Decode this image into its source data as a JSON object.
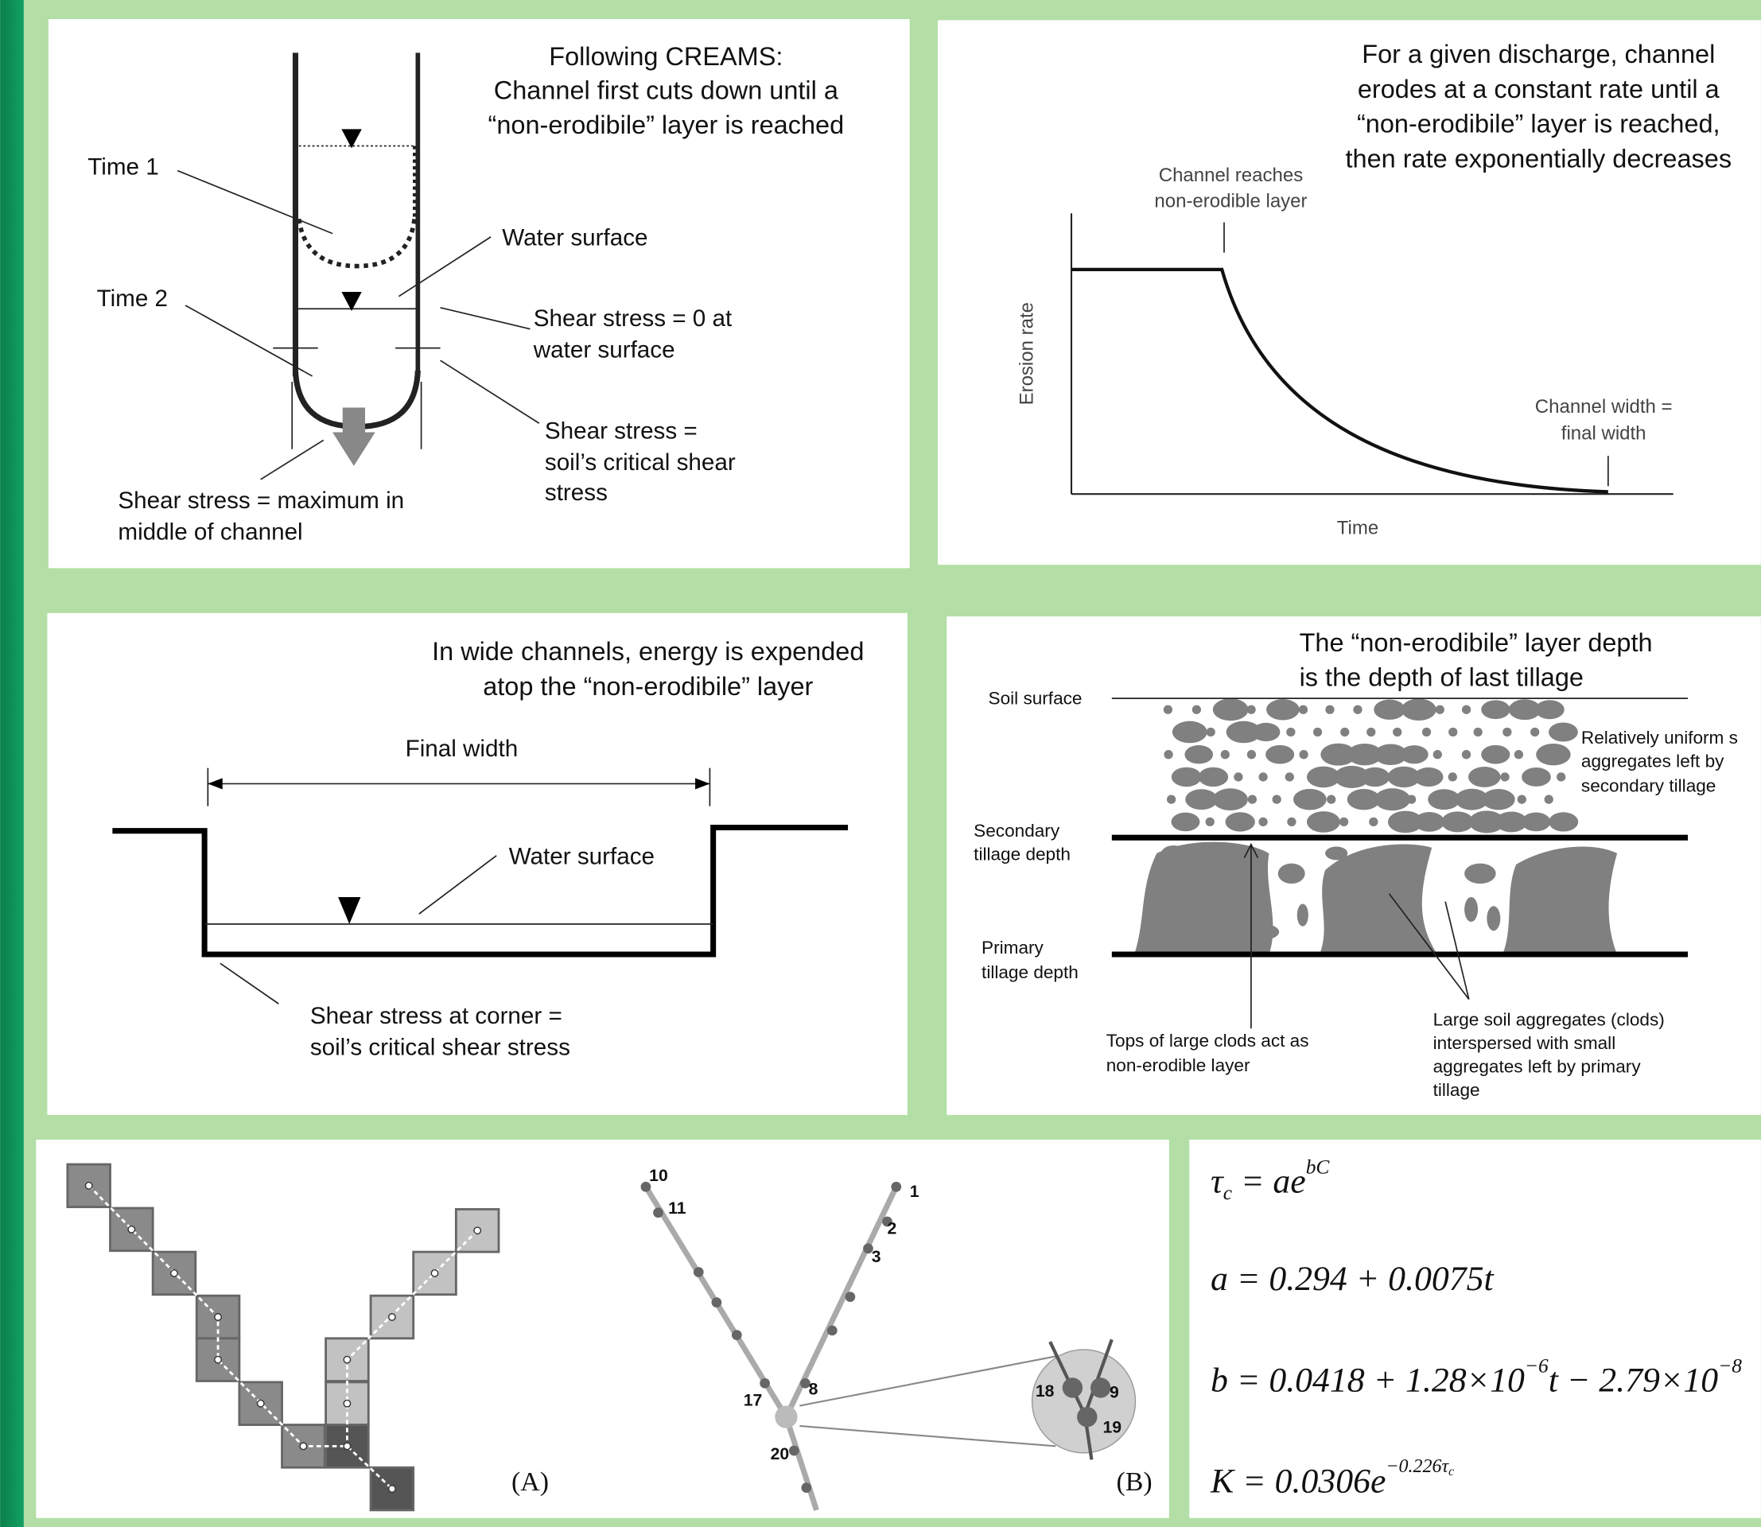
{
  "panels": [
    {
      "title": [
        "Following CREAMS:",
        "Channel first cuts down until a",
        "“non-erodibile” layer is reached"
      ],
      "labels": [
        "Time 1",
        "Time 2",
        "Water surface",
        "Shear stress = 0 at",
        "water surface",
        "Shear stress =",
        "soil’s critical shear",
        "stress",
        "Shear stress = maximum in",
        "middle of channel"
      ]
    },
    {
      "title": [
        "For a given discharge, channel",
        "erodes at a constant rate until a",
        "“non-erodibile” layer is reached,",
        "then rate exponentially decreases"
      ],
      "labels": [
        "Channel reaches",
        "non-erodible layer",
        "Erosion rate",
        "Time",
        "Channel width =",
        "final width"
      ]
    },
    {
      "title": [
        "In wide channels, energy is expended",
        "atop the “non-erodibile” layer"
      ],
      "labels": [
        "Final width",
        "Water surface",
        "Shear stress at corner =",
        "soil’s critical shear stress"
      ]
    },
    {
      "title": [
        "The “non-erodibile” layer depth",
        "is the depth of last tillage"
      ],
      "labels": [
        "Soil surface",
        "Secondary",
        "tillage depth",
        "Primary",
        "tillage depth",
        "Relatively uniform s",
        "aggregates left by",
        "secondary tillage",
        "Tops of large clods act as",
        "non-erodible layer",
        "Large soil aggregates (clods)",
        "interspersed with small",
        "aggregates left by primary",
        "tillage"
      ]
    },
    {
      "labels": [
        "(A)",
        "(B)"
      ],
      "numbers": [
        "10",
        "11",
        "1",
        "2",
        "3",
        "17",
        "8",
        "20",
        "18",
        "9",
        "19"
      ]
    },
    {
      "equations": [
        [
          "τ",
          "c",
          " = ae",
          "bC"
        ],
        [
          "a = 0.294 + 0.0075t"
        ],
        [
          "b = 0.0418 + 1.28×10",
          "−6",
          "t − 2.79×10",
          "−8"
        ],
        [
          "K = 0.0306e",
          "−0.226τ",
          "c"
        ]
      ]
    }
  ]
}
